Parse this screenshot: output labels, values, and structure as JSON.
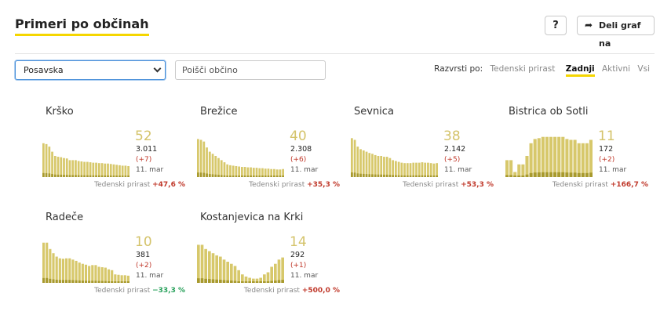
{
  "header": {
    "title": "Primeri po občinah",
    "help_label": "?",
    "share_label": "Deli graf na"
  },
  "controls": {
    "region_selected": "Posavska",
    "search_placeholder": "Poišči občino",
    "sort_label": "Razvrsti po:",
    "sort_options": [
      "Tedenski prirast",
      "Zadnji",
      "Aktivni",
      "Vsi"
    ],
    "sort_active": "Zadnji"
  },
  "colors": {
    "accent": "#f5d600",
    "bar": "#d7c86b",
    "bar_dark": "#a89a2e",
    "increase": "#c0392b",
    "decrease": "#27a05a"
  },
  "growth_label": "Tedenski prirast",
  "municipalities": [
    {
      "name": "Krško",
      "last": "52",
      "total": "3.011",
      "delta": "(+7)",
      "date": "11. mar",
      "growth": "+47,6 %",
      "trend": "pos",
      "bars": [
        80,
        78,
        72,
        60,
        50,
        48,
        47,
        45,
        44,
        40,
        40,
        40,
        38,
        37,
        36,
        36,
        35,
        34,
        34,
        33,
        33,
        32,
        32,
        31,
        30,
        29,
        28,
        27,
        27,
        26
      ]
    },
    {
      "name": "Brežice",
      "last": "40",
      "total": "2.308",
      "delta": "(+6)",
      "date": "11. mar",
      "growth": "+35,3 %",
      "trend": "pos",
      "bars": [
        90,
        88,
        84,
        70,
        60,
        55,
        50,
        45,
        40,
        35,
        30,
        28,
        27,
        26,
        25,
        24,
        24,
        23,
        23,
        22,
        22,
        21,
        21,
        20,
        20,
        19,
        19,
        18,
        18,
        19
      ]
    },
    {
      "name": "Sevnica",
      "last": "38",
      "total": "2.142",
      "delta": "(+5)",
      "date": "11. mar",
      "growth": "+53,3 %",
      "trend": "pos",
      "bars": [
        92,
        88,
        72,
        66,
        63,
        60,
        57,
        55,
        52,
        50,
        50,
        48,
        48,
        45,
        40,
        38,
        36,
        34,
        33,
        33,
        33,
        34,
        34,
        34,
        35,
        34,
        34,
        33,
        32,
        33
      ]
    },
    {
      "name": "Bistrica ob Sotli",
      "last": "11",
      "total": "172",
      "delta": "(+2)",
      "date": "11. mar",
      "growth": "+166,7 %",
      "trend": "pos",
      "bars": [
        40,
        40,
        12,
        30,
        30,
        50,
        80,
        90,
        92,
        95,
        95,
        95,
        95,
        95,
        95,
        90,
        88,
        88,
        80,
        80,
        80,
        88
      ]
    },
    {
      "name": "Radeče",
      "last": "10",
      "total": "381",
      "delta": "(+2)",
      "date": "11. mar",
      "growth": "−33,3 %",
      "trend": "neg",
      "bars": [
        95,
        95,
        80,
        70,
        62,
        58,
        57,
        58,
        58,
        55,
        52,
        48,
        45,
        43,
        40,
        42,
        42,
        38,
        37,
        36,
        32,
        30,
        20,
        19,
        18,
        18,
        17
      ]
    },
    {
      "name": "Kostanjevica na Krki",
      "last": "14",
      "total": "292",
      "delta": "(+1)",
      "date": "11. mar",
      "growth": "+500,0 %",
      "trend": "pos",
      "bars": [
        90,
        90,
        80,
        75,
        70,
        65,
        62,
        55,
        50,
        45,
        40,
        30,
        20,
        15,
        12,
        10,
        10,
        12,
        20,
        25,
        38,
        45,
        55,
        60
      ]
    }
  ]
}
